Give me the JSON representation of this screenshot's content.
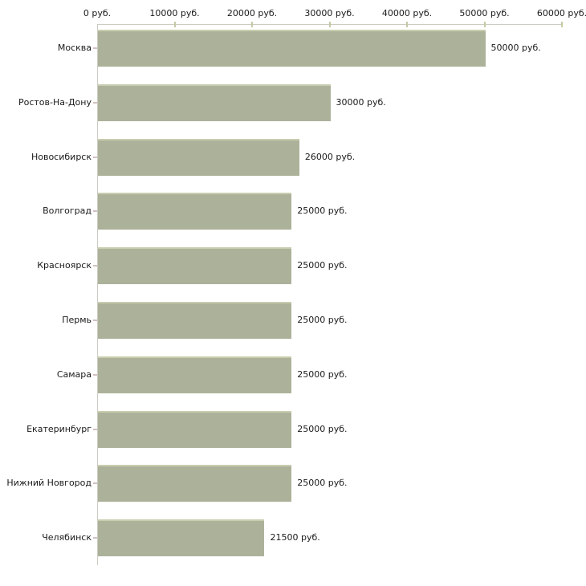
{
  "chart_data": {
    "type": "bar",
    "orientation": "horizontal",
    "categories": [
      "Москва",
      "Ростов-На-Дону",
      "Новосибирск",
      "Волгоград",
      "Красноярск",
      "Пермь",
      "Самара",
      "Екатеринбург",
      "Нижний Новгород",
      "Челябинск"
    ],
    "values": [
      50000,
      30000,
      26000,
      25000,
      25000,
      25000,
      25000,
      25000,
      25000,
      21500
    ],
    "bar_labels": [
      "50000 руб.",
      "30000 руб.",
      "26000 руб.",
      "25000 руб.",
      "25000 руб.",
      "25000 руб.",
      "25000 руб.",
      "25000 руб.",
      "25000 руб.",
      "21500 руб."
    ],
    "x_axis": {
      "position": "top",
      "min": 0,
      "max": 60000,
      "ticks": [
        0,
        10000,
        20000,
        30000,
        40000,
        50000,
        60000
      ],
      "tick_labels": [
        "0 руб.",
        "10000 руб.",
        "20000 руб.",
        "30000 руб.",
        "40000 руб.",
        "50000 руб.",
        "60000 руб."
      ]
    },
    "grid": false,
    "legend": false,
    "colors": {
      "bar": "#acb29a",
      "bar_top_edge": "#c9cdaf",
      "axis_line": "#ccccc2",
      "x_tick": "#c5caa4",
      "y_tick": "#d3c0c0",
      "text": "#1a1a1a",
      "background": "#ffffff"
    }
  }
}
